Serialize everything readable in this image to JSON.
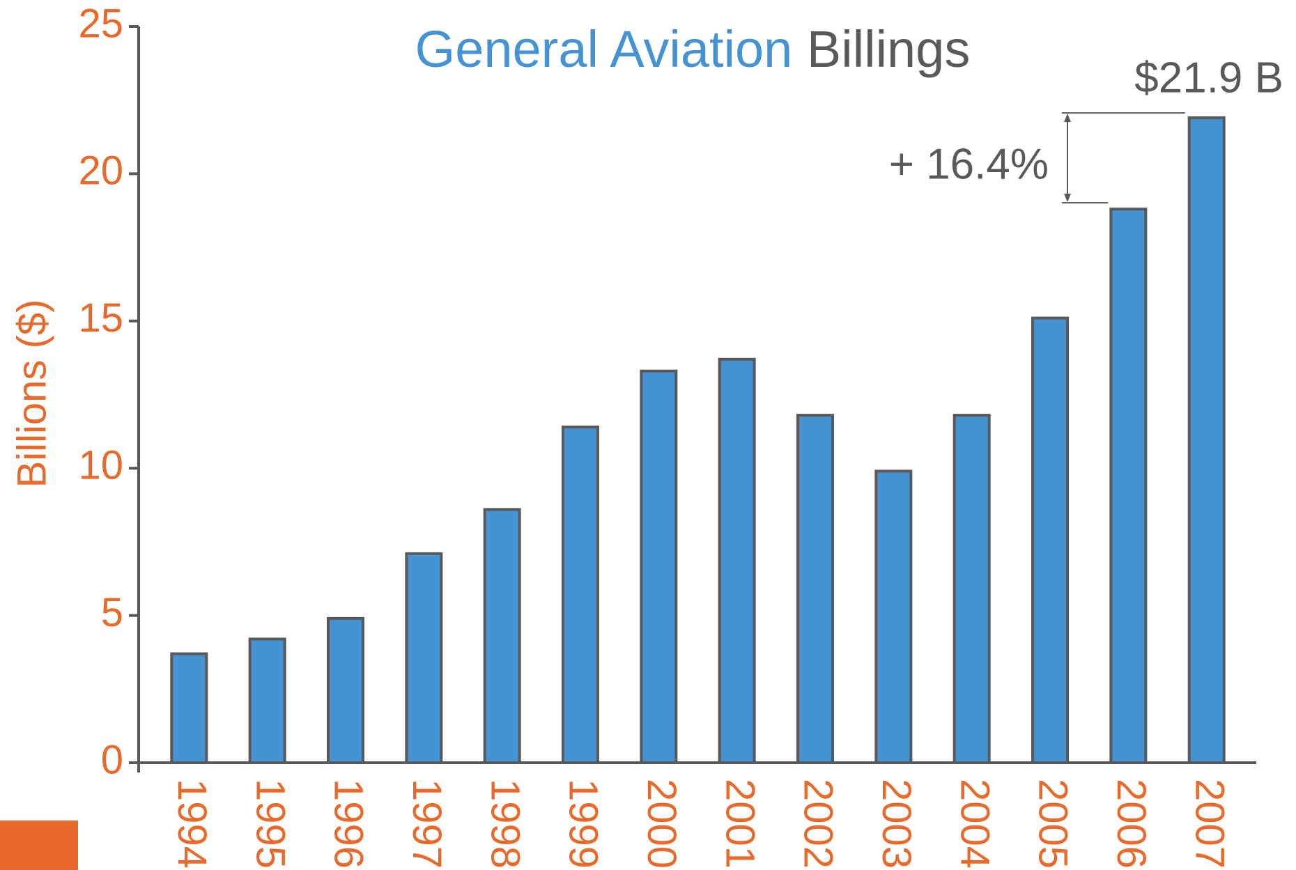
{
  "chart_data": {
    "type": "bar",
    "title_parts": [
      "General Aviation",
      "Billings"
    ],
    "y_label": "Billions ($)",
    "categories": [
      "1994",
      "1995",
      "1996",
      "1997",
      "1998",
      "1999",
      "2000",
      "2001",
      "2002",
      "2003",
      "2004",
      "2005",
      "2006",
      "2007"
    ],
    "values": [
      3.7,
      4.2,
      4.9,
      7.1,
      8.6,
      11.4,
      13.3,
      13.7,
      11.8,
      9.9,
      11.8,
      15.1,
      18.8,
      21.9
    ],
    "color": "#4593d2",
    "ylim": [
      0,
      25
    ],
    "yticks": [
      0,
      5,
      10,
      15,
      20,
      25
    ],
    "annotations": [
      "$21.9 B",
      "+ 16.4%"
    ]
  }
}
